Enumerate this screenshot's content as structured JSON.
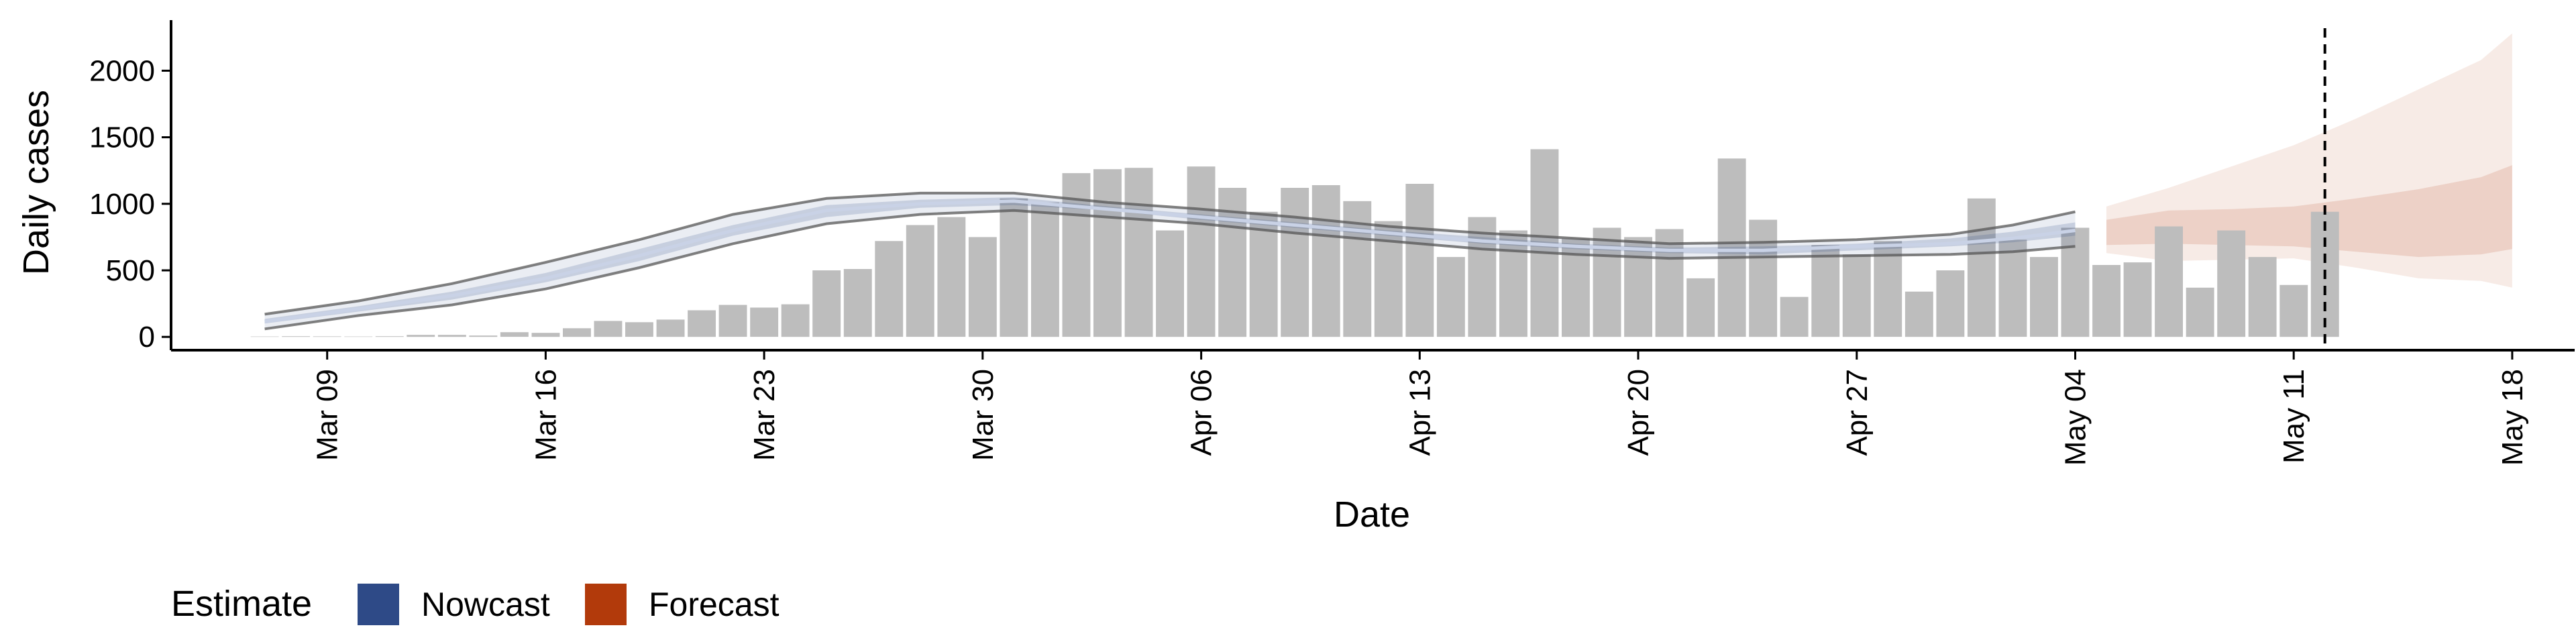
{
  "chart_data": {
    "type": "bar",
    "ylabel": "Daily cases",
    "xlabel": "Date",
    "ylim": [
      -100,
      2380
    ],
    "yticks": [
      0,
      500,
      1000,
      1500,
      2000
    ],
    "xlim": [
      "2020-03-04",
      "2020-05-20"
    ],
    "xticks": [
      {
        "date": "2020-03-09",
        "label": "Mar 09"
      },
      {
        "date": "2020-03-16",
        "label": "Mar 16"
      },
      {
        "date": "2020-03-23",
        "label": "Mar 23"
      },
      {
        "date": "2020-03-30",
        "label": "Mar 30"
      },
      {
        "date": "2020-04-06",
        "label": "Apr 06"
      },
      {
        "date": "2020-04-13",
        "label": "Apr 13"
      },
      {
        "date": "2020-04-20",
        "label": "Apr 20"
      },
      {
        "date": "2020-04-27",
        "label": "Apr 27"
      },
      {
        "date": "2020-05-04",
        "label": "May 04"
      },
      {
        "date": "2020-05-11",
        "label": "May 11"
      },
      {
        "date": "2020-05-18",
        "label": "May 18"
      }
    ],
    "bars": {
      "start_date": "2020-03-07",
      "values": [
        3,
        5,
        4,
        3,
        5,
        15,
        15,
        10,
        35,
        30,
        65,
        120,
        110,
        130,
        200,
        240,
        220,
        245,
        500,
        510,
        720,
        840,
        900,
        750,
        1040,
        1010,
        1230,
        1260,
        1270,
        800,
        1280,
        1120,
        940,
        1120,
        1140,
        1020,
        870,
        1150,
        600,
        900,
        800,
        1410,
        740,
        820,
        750,
        810,
        440,
        1340,
        880,
        300,
        690,
        620,
        720,
        340,
        500,
        1040,
        730,
        600,
        820,
        540,
        560,
        830,
        370,
        800,
        600,
        390,
        940
      ],
      "color": "#bdbdbd"
    },
    "nowcast": {
      "name": "Nowcast",
      "color": "#2e4a87",
      "dates": [
        "2020-03-07",
        "2020-03-10",
        "2020-03-13",
        "2020-03-16",
        "2020-03-19",
        "2020-03-22",
        "2020-03-25",
        "2020-03-28",
        "2020-03-31",
        "2020-04-03",
        "2020-04-06",
        "2020-04-09",
        "2020-04-12",
        "2020-04-15",
        "2020-04-18",
        "2020-04-21",
        "2020-04-24",
        "2020-04-27",
        "2020-04-30",
        "2020-05-02",
        "2020-05-04"
      ],
      "outer_low": [
        60,
        160,
        240,
        360,
        520,
        700,
        850,
        920,
        950,
        900,
        850,
        780,
        720,
        660,
        620,
        590,
        600,
        610,
        620,
        640,
        680
      ],
      "inner_low": [
        100,
        190,
        280,
        410,
        570,
        760,
        900,
        970,
        990,
        950,
        880,
        820,
        760,
        700,
        660,
        630,
        620,
        650,
        680,
        710,
        760
      ],
      "median": [
        115,
        210,
        310,
        440,
        610,
        800,
        950,
        1000,
        1020,
        960,
        900,
        840,
        780,
        720,
        680,
        650,
        650,
        680,
        700,
        740,
        800
      ],
      "inner_high": [
        135,
        230,
        340,
        480,
        660,
        840,
        990,
        1030,
        1050,
        980,
        920,
        860,
        800,
        750,
        700,
        670,
        680,
        700,
        740,
        790,
        860
      ],
      "outer_high": [
        170,
        270,
        400,
        560,
        730,
        920,
        1040,
        1080,
        1080,
        1010,
        960,
        900,
        830,
        780,
        740,
        700,
        710,
        730,
        770,
        840,
        940
      ]
    },
    "forecast": {
      "name": "Forecast",
      "color": "#b23a0b",
      "dates": [
        "2020-05-05",
        "2020-05-07",
        "2020-05-09",
        "2020-05-11",
        "2020-05-13",
        "2020-05-15",
        "2020-05-17",
        "2020-05-18"
      ],
      "outer_low": [
        630,
        570,
        580,
        590,
        520,
        440,
        420,
        370
      ],
      "inner_low": [
        690,
        700,
        690,
        680,
        640,
        600,
        620,
        660
      ],
      "inner_high": [
        880,
        950,
        960,
        980,
        1040,
        1110,
        1200,
        1290
      ],
      "outer_high": [
        980,
        1120,
        1280,
        1440,
        1640,
        1860,
        2080,
        2280
      ]
    },
    "forecast_start": "2020-05-12",
    "legend": {
      "title": "Estimate",
      "position": "bottom-left",
      "items": [
        {
          "label": "Nowcast",
          "color": "#2e4a87"
        },
        {
          "label": "Forecast",
          "color": "#b23a0b"
        }
      ]
    },
    "grid": false
  }
}
